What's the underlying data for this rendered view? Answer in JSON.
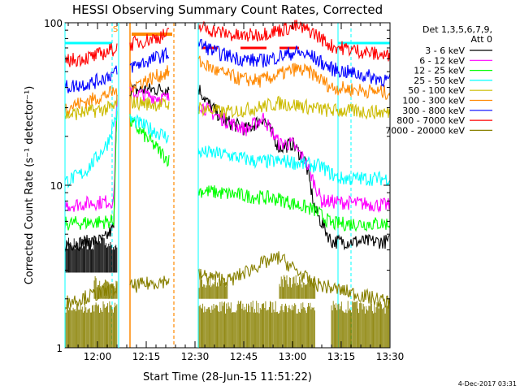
{
  "chart_data": {
    "type": "line",
    "title": "HESSI Observing Summary Count Rates, Corrected",
    "xlabel": "Start Time (28-Jun-15 11:51:22)",
    "ylabel": "Corrected Count Rate (s⁻¹ detector⁻¹)",
    "y_scale": "log",
    "ylim": [
      1,
      100
    ],
    "xlim_min": [
      -4,
      96
    ],
    "x_unit": "minutes after 11:54",
    "xticks": [
      {
        "min": 6,
        "label": "12:00"
      },
      {
        "min": 21,
        "label": "12:15"
      },
      {
        "min": 36,
        "label": "12:30"
      },
      {
        "min": 51,
        "label": "12:45"
      },
      {
        "min": 66,
        "label": "13:00"
      },
      {
        "min": 81,
        "label": "13:15"
      },
      {
        "min": 96,
        "label": "13:30"
      }
    ],
    "yticks": [
      {
        "value": 1,
        "label": "1"
      },
      {
        "value": 10,
        "label": "10"
      },
      {
        "value": 100,
        "label": "100"
      }
    ],
    "legend": {
      "header1": "Det 1,3,5,6,7,9,",
      "header2": "Att 0",
      "placement": "right"
    },
    "gaps": [
      [
        12,
        16
      ],
      [
        28,
        37
      ]
    ],
    "series": [
      {
        "name": "3 - 6 keV",
        "color": "#000000",
        "points": [
          [
            -4,
            4.3
          ],
          [
            8,
            4.6
          ],
          [
            11,
            5.5
          ],
          [
            12,
            38
          ],
          [
            37,
            40
          ],
          [
            40,
            32
          ],
          [
            45,
            25
          ],
          [
            52,
            22
          ],
          [
            57,
            26
          ],
          [
            62,
            17
          ],
          [
            66,
            18
          ],
          [
            70,
            14
          ],
          [
            73,
            7
          ],
          [
            78,
            4.5
          ],
          [
            96,
            4.5
          ]
        ]
      },
      {
        "name": "6 - 12 keV",
        "color": "#ff00ff",
        "points": [
          [
            -4,
            7.5
          ],
          [
            11,
            8
          ],
          [
            12,
            38
          ],
          [
            37,
            32
          ],
          [
            41,
            28
          ],
          [
            47,
            24
          ],
          [
            52,
            22
          ],
          [
            57,
            26
          ],
          [
            62,
            18
          ],
          [
            66,
            18
          ],
          [
            70,
            14
          ],
          [
            75,
            8
          ],
          [
            96,
            7.5
          ]
        ]
      },
      {
        "name": "12 - 25 keV",
        "color": "#00ff00",
        "points": [
          [
            -4,
            5.8
          ],
          [
            11,
            6
          ],
          [
            12,
            30
          ],
          [
            37,
            9.3
          ],
          [
            52,
            8.6
          ],
          [
            62,
            8.2
          ],
          [
            73,
            7
          ],
          [
            78,
            5.8
          ],
          [
            96,
            5.8
          ]
        ]
      },
      {
        "name": "25 - 50 keV",
        "color": "#00ffff",
        "points": [
          [
            -4,
            10.5
          ],
          [
            2,
            12
          ],
          [
            6,
            15
          ],
          [
            9,
            18
          ],
          [
            12,
            28
          ],
          [
            37,
            16
          ],
          [
            45,
            15.5
          ],
          [
            55,
            14
          ],
          [
            65,
            14
          ],
          [
            75,
            13
          ],
          [
            80,
            11
          ],
          [
            96,
            11
          ]
        ]
      },
      {
        "name": "50 - 100 keV",
        "color": "#ccbb00",
        "points": [
          [
            -4,
            27
          ],
          [
            11,
            30
          ],
          [
            12,
            33
          ],
          [
            37,
            30
          ],
          [
            45,
            28
          ],
          [
            55,
            30
          ],
          [
            62,
            32
          ],
          [
            68,
            31
          ],
          [
            76,
            29
          ],
          [
            96,
            28
          ]
        ]
      },
      {
        "name": "100 - 300 keV",
        "color": "#ff8800",
        "points": [
          [
            -4,
            30
          ],
          [
            5,
            34
          ],
          [
            12,
            38
          ],
          [
            37,
            58
          ],
          [
            43,
            50
          ],
          [
            50,
            45
          ],
          [
            56,
            44
          ],
          [
            62,
            48
          ],
          [
            67,
            52
          ],
          [
            72,
            49
          ],
          [
            78,
            40
          ],
          [
            96,
            37
          ]
        ]
      },
      {
        "name": "300 - 800 keV",
        "color": "#0000ff",
        "points": [
          [
            -4,
            40
          ],
          [
            5,
            43
          ],
          [
            12,
            50
          ],
          [
            37,
            75
          ],
          [
            43,
            65
          ],
          [
            50,
            60
          ],
          [
            56,
            58
          ],
          [
            62,
            62
          ],
          [
            67,
            66
          ],
          [
            72,
            62
          ],
          [
            78,
            52
          ],
          [
            96,
            44
          ]
        ]
      },
      {
        "name": "800 - 7000 keV",
        "color": "#ff0000",
        "points": [
          [
            -4,
            58
          ],
          [
            5,
            62
          ],
          [
            12,
            70
          ],
          [
            37,
            95
          ],
          [
            43,
            88
          ],
          [
            50,
            82
          ],
          [
            56,
            85
          ],
          [
            62,
            90
          ],
          [
            67,
            95
          ],
          [
            72,
            88
          ],
          [
            78,
            72
          ],
          [
            96,
            62
          ]
        ]
      },
      {
        "name": "7000 - 20000 keV",
        "color": "#888000",
        "points": [
          [
            -4,
            1.9
          ],
          [
            12,
            2.3
          ],
          [
            37,
            2.8
          ],
          [
            47,
            2.6
          ],
          [
            55,
            3.2
          ],
          [
            62,
            3.6
          ],
          [
            72,
            2.5
          ],
          [
            96,
            1.9
          ]
        ]
      }
    ],
    "spikes": [
      {
        "name": "7000 - 20000 keV",
        "color": "#888000",
        "low": 1.0,
        "high": 1.95,
        "ranges": [
          [
            -4,
            12
          ],
          [
            37,
            73
          ],
          [
            78,
            96
          ]
        ]
      },
      {
        "name": "7000 - 20000 keV",
        "color": "#888000",
        "low": 2.0,
        "high": 2.8,
        "ranges": [
          [
            5,
            12
          ],
          [
            37,
            46
          ],
          [
            62,
            73
          ]
        ]
      },
      {
        "name": "3 - 6 keV",
        "color": "#000000",
        "low": 2.9,
        "high": 4.8,
        "ranges": [
          [
            -4,
            12
          ]
        ]
      }
    ],
    "markers": {
      "solid_vertical": [
        -4,
        12.5,
        37
      ],
      "dashed_vertical": [
        10.5,
        84,
        96
      ],
      "orange_vertical": [
        16
      ],
      "orange_dashed_vertical": [
        29.5
      ],
      "cyan_solid_at": [
        80
      ],
      "saa_bar": {
        "from": 16.5,
        "to": 29,
        "y": 85
      },
      "top_cyan_segments": [
        [
          -4,
          10.5
        ],
        [
          80,
          96
        ]
      ],
      "red_dash_segments": [
        [
          38,
          43
        ],
        [
          50,
          58
        ],
        [
          62,
          68
        ]
      ],
      "s_label": {
        "text": "S",
        "x": 11.5,
        "y": 88
      }
    }
  },
  "footer": {
    "timestamp": "4-Dec-2017 03:31"
  }
}
